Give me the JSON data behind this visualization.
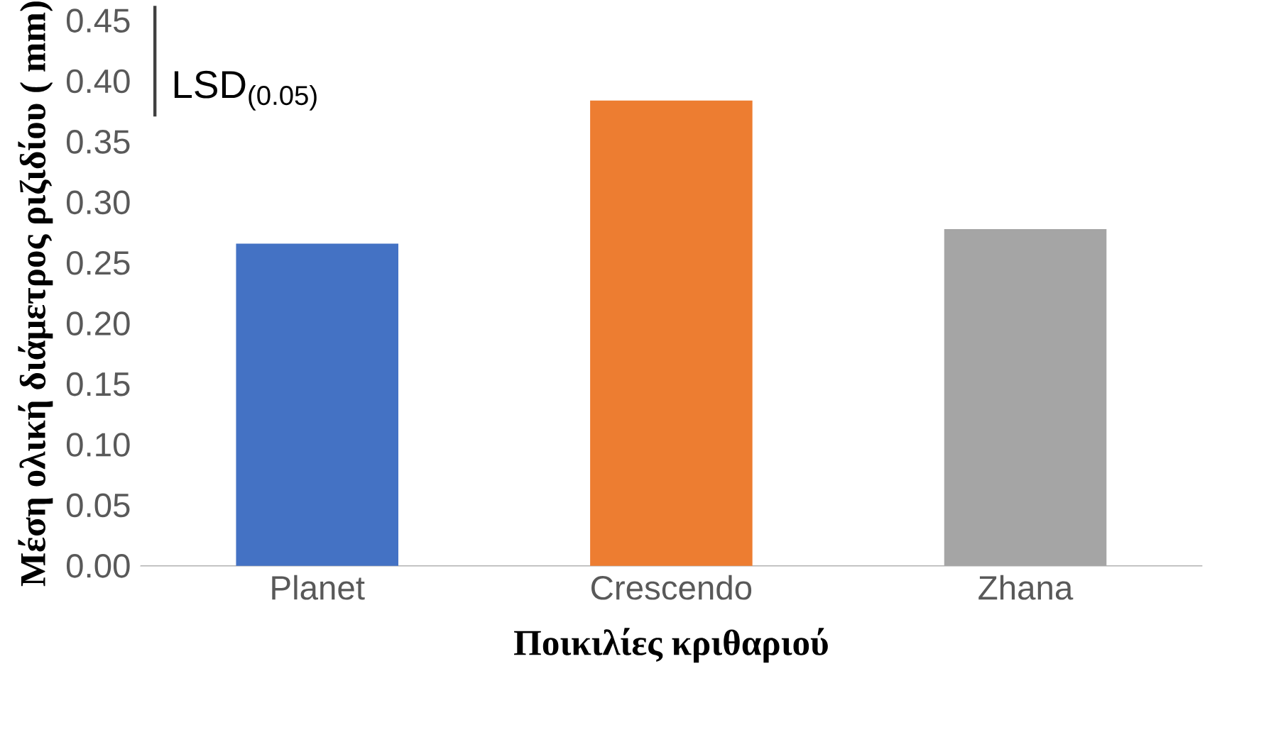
{
  "chart_data": {
    "type": "bar",
    "xlabel": "Ποικιλίες κριθαριού",
    "ylabel": "Μέση ολική διάμετρος ριζιδίου ( mm)",
    "categories": [
      "Planet",
      "Crescendo",
      "Zhana"
    ],
    "values": [
      0.266,
      0.384,
      0.278
    ],
    "colors": [
      "#4472c4",
      "#ed7d31",
      "#a5a5a5"
    ],
    "ylim": [
      0,
      0.45
    ],
    "yticks": [
      {
        "value": 0,
        "label": "0.00"
      },
      {
        "value": 0.05,
        "label": "0.05"
      },
      {
        "value": 0.1,
        "label": "0.10"
      },
      {
        "value": 0.15,
        "label": "0.15"
      },
      {
        "value": 0.2,
        "label": "0.20"
      },
      {
        "value": 0.25,
        "label": "0.25"
      },
      {
        "value": 0.3,
        "label": "0.30"
      },
      {
        "value": 0.35,
        "label": "0.35"
      },
      {
        "value": 0.4,
        "label": "0.40"
      },
      {
        "value": 0.45,
        "label": "0.45"
      }
    ],
    "grid": false,
    "annotations": [
      "LSD$_{(0.05)}$"
    ]
  }
}
